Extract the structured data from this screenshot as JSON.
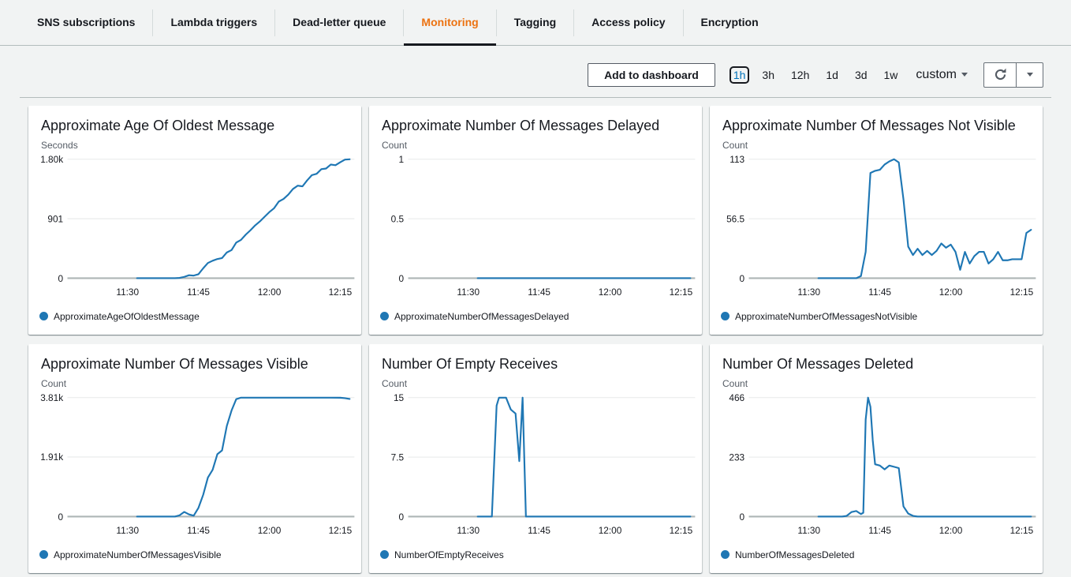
{
  "colors": {
    "line": "#1f77b4",
    "accent_orange": "#ec7211",
    "link_blue": "#0073bb"
  },
  "tabs": {
    "items": [
      {
        "label": "SNS subscriptions",
        "active": false
      },
      {
        "label": "Lambda triggers",
        "active": false
      },
      {
        "label": "Dead-letter queue",
        "active": false
      },
      {
        "label": "Monitoring",
        "active": true
      },
      {
        "label": "Tagging",
        "active": false
      },
      {
        "label": "Access policy",
        "active": false
      },
      {
        "label": "Encryption",
        "active": false
      }
    ]
  },
  "toolbar": {
    "add_to_dashboard": "Add to dashboard",
    "ranges": [
      "1h",
      "3h",
      "12h",
      "1d",
      "3d",
      "1w"
    ],
    "selected_range": "1h",
    "custom_label": "custom"
  },
  "time_axis": {
    "domain_minutes": [
      0,
      60
    ],
    "ticks": [
      "11:30",
      "11:45",
      "12:00",
      "12:15"
    ],
    "tick_minutes": [
      12,
      27,
      42,
      57
    ]
  },
  "chart_data": [
    {
      "type": "line",
      "title": "Approximate Age Of Oldest Message",
      "ylabel": "Seconds",
      "legend": "ApproximateAgeOfOldestMessage",
      "ymax": 1800,
      "yticks": [
        {
          "value": 0,
          "label": "0"
        },
        {
          "value": 901,
          "label": "901"
        },
        {
          "value": 1800,
          "label": "1.80k"
        }
      ],
      "points": [
        [
          14,
          0
        ],
        [
          16,
          0
        ],
        [
          18,
          0
        ],
        [
          20,
          0
        ],
        [
          22,
          0
        ],
        [
          23,
          5
        ],
        [
          24,
          20
        ],
        [
          25,
          45
        ],
        [
          26,
          40
        ],
        [
          27,
          60
        ],
        [
          28,
          150
        ],
        [
          29,
          230
        ],
        [
          30,
          265
        ],
        [
          31,
          290
        ],
        [
          32,
          305
        ],
        [
          33,
          390
        ],
        [
          34,
          425
        ],
        [
          35,
          540
        ],
        [
          36,
          580
        ],
        [
          37,
          660
        ],
        [
          38,
          725
        ],
        [
          39,
          800
        ],
        [
          40,
          860
        ],
        [
          41,
          930
        ],
        [
          42,
          1000
        ],
        [
          43,
          1060
        ],
        [
          44,
          1160
        ],
        [
          45,
          1200
        ],
        [
          46,
          1265
        ],
        [
          47,
          1350
        ],
        [
          48,
          1400
        ],
        [
          49,
          1390
        ],
        [
          50,
          1480
        ],
        [
          51,
          1560
        ],
        [
          52,
          1580
        ],
        [
          53,
          1650
        ],
        [
          54,
          1660
        ],
        [
          55,
          1720
        ],
        [
          56,
          1710
        ],
        [
          57,
          1755
        ],
        [
          58,
          1795
        ],
        [
          59,
          1800
        ]
      ]
    },
    {
      "type": "line",
      "title": "Approximate Number Of Messages Delayed",
      "ylabel": "Count",
      "legend": "ApproximateNumberOfMessagesDelayed",
      "ymax": 1,
      "yticks": [
        {
          "value": 0,
          "label": "0"
        },
        {
          "value": 0.5,
          "label": "0.5"
        },
        {
          "value": 1,
          "label": "1"
        }
      ],
      "points": [
        [
          14,
          0
        ],
        [
          25,
          0
        ],
        [
          35,
          0
        ],
        [
          45,
          0
        ],
        [
          59,
          0
        ]
      ]
    },
    {
      "type": "line",
      "title": "Approximate Number Of Messages Not Visible",
      "ylabel": "Count",
      "legend": "ApproximateNumberOfMessagesNotVisible",
      "ymax": 113,
      "yticks": [
        {
          "value": 0,
          "label": "0"
        },
        {
          "value": 56.5,
          "label": "56.5"
        },
        {
          "value": 113,
          "label": "113"
        }
      ],
      "points": [
        [
          14,
          0
        ],
        [
          18,
          0
        ],
        [
          22,
          0
        ],
        [
          23,
          2
        ],
        [
          24,
          25
        ],
        [
          25,
          100
        ],
        [
          26,
          102
        ],
        [
          27,
          103
        ],
        [
          28,
          108
        ],
        [
          29,
          111
        ],
        [
          30,
          113
        ],
        [
          31,
          110
        ],
        [
          32,
          75
        ],
        [
          33,
          30
        ],
        [
          34,
          22
        ],
        [
          35,
          28
        ],
        [
          36,
          22
        ],
        [
          37,
          26
        ],
        [
          38,
          22
        ],
        [
          39,
          26
        ],
        [
          40,
          33
        ],
        [
          41,
          29
        ],
        [
          42,
          32
        ],
        [
          43,
          25
        ],
        [
          44,
          8
        ],
        [
          45,
          25
        ],
        [
          46,
          14
        ],
        [
          47,
          21
        ],
        [
          48,
          25
        ],
        [
          49,
          25
        ],
        [
          50,
          14
        ],
        [
          51,
          18
        ],
        [
          52,
          25
        ],
        [
          53,
          17
        ],
        [
          54,
          17
        ],
        [
          55,
          18
        ],
        [
          56,
          18
        ],
        [
          57,
          18
        ],
        [
          58,
          43
        ],
        [
          59,
          46
        ]
      ]
    },
    {
      "type": "line",
      "title": "Approximate Number Of Messages Visible",
      "ylabel": "Count",
      "legend": "ApproximateNumberOfMessagesVisible",
      "ymax": 3810,
      "yticks": [
        {
          "value": 0,
          "label": "0"
        },
        {
          "value": 1910,
          "label": "1.91k"
        },
        {
          "value": 3810,
          "label": "3.81k"
        }
      ],
      "points": [
        [
          14,
          0
        ],
        [
          18,
          0
        ],
        [
          22,
          0
        ],
        [
          23,
          40
        ],
        [
          24,
          150
        ],
        [
          25,
          70
        ],
        [
          26,
          30
        ],
        [
          27,
          280
        ],
        [
          28,
          700
        ],
        [
          29,
          1250
        ],
        [
          30,
          1500
        ],
        [
          31,
          2000
        ],
        [
          32,
          2120
        ],
        [
          33,
          2900
        ],
        [
          34,
          3400
        ],
        [
          35,
          3760
        ],
        [
          36,
          3810
        ],
        [
          40,
          3810
        ],
        [
          45,
          3810
        ],
        [
          50,
          3810
        ],
        [
          55,
          3810
        ],
        [
          57,
          3808
        ],
        [
          58,
          3795
        ],
        [
          59,
          3770
        ]
      ]
    },
    {
      "type": "line",
      "title": "Number Of Empty Receives",
      "ylabel": "Count",
      "legend": "NumberOfEmptyReceives",
      "ymax": 15,
      "yticks": [
        {
          "value": 0,
          "label": "0"
        },
        {
          "value": 7.5,
          "label": "7.5"
        },
        {
          "value": 15,
          "label": "15"
        }
      ],
      "points": [
        [
          14,
          0
        ],
        [
          16,
          0
        ],
        [
          17,
          0
        ],
        [
          18,
          14
        ],
        [
          18.5,
          15
        ],
        [
          20,
          15
        ],
        [
          21,
          13.5
        ],
        [
          22,
          13
        ],
        [
          22.8,
          7
        ],
        [
          23.5,
          15
        ],
        [
          24.2,
          0
        ],
        [
          26,
          0
        ],
        [
          30,
          0
        ],
        [
          35,
          0
        ],
        [
          40,
          0
        ],
        [
          45,
          0
        ],
        [
          50,
          0
        ],
        [
          55,
          0
        ],
        [
          59,
          0
        ]
      ]
    },
    {
      "type": "line",
      "title": "Number Of Messages Deleted",
      "ylabel": "Count",
      "legend": "NumberOfMessagesDeleted",
      "ymax": 466,
      "yticks": [
        {
          "value": 0,
          "label": "0"
        },
        {
          "value": 233,
          "label": "233"
        },
        {
          "value": 466,
          "label": "466"
        }
      ],
      "points": [
        [
          14,
          0
        ],
        [
          17,
          0
        ],
        [
          19,
          0
        ],
        [
          20,
          3
        ],
        [
          21,
          18
        ],
        [
          22,
          22
        ],
        [
          23,
          10
        ],
        [
          23.5,
          15
        ],
        [
          24,
          380
        ],
        [
          24.5,
          466
        ],
        [
          25,
          430
        ],
        [
          25.5,
          300
        ],
        [
          26,
          205
        ],
        [
          27,
          200
        ],
        [
          28,
          185
        ],
        [
          29,
          200
        ],
        [
          30,
          195
        ],
        [
          31,
          190
        ],
        [
          32,
          40
        ],
        [
          33,
          12
        ],
        [
          34,
          3
        ],
        [
          35,
          0
        ],
        [
          40,
          0
        ],
        [
          45,
          0
        ],
        [
          50,
          0
        ],
        [
          55,
          0
        ],
        [
          59,
          0
        ]
      ]
    }
  ]
}
